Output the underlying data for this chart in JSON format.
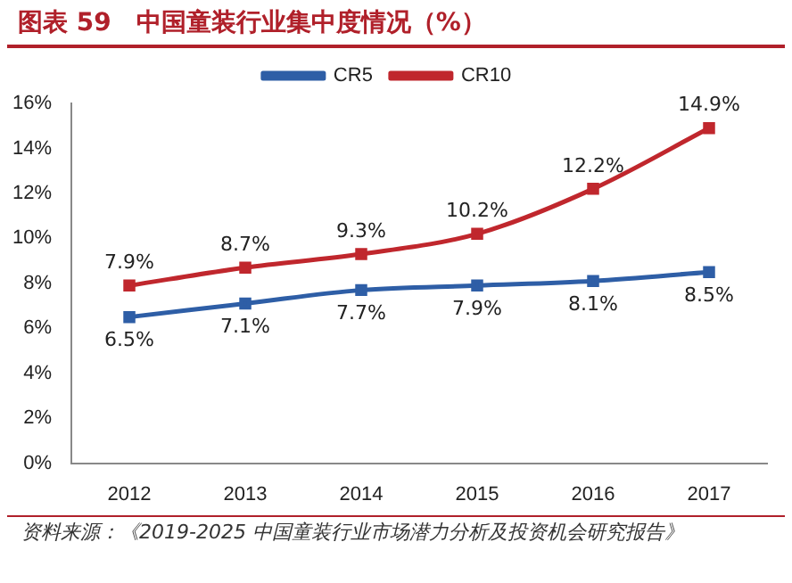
{
  "chart_data": {
    "type": "line",
    "title": "图表 59　中国童装行业集中度情况（%）",
    "categories": [
      "2012",
      "2013",
      "2014",
      "2015",
      "2016",
      "2017"
    ],
    "series": [
      {
        "name": "CR5",
        "color": "#2e5ea6",
        "values": [
          6.5,
          7.1,
          7.7,
          7.9,
          8.1,
          8.5
        ],
        "value_labels": [
          "6.5%",
          "7.1%",
          "7.7%",
          "7.9%",
          "8.1%",
          "8.5%"
        ]
      },
      {
        "name": "CR10",
        "color": "#c0272d",
        "values": [
          7.9,
          8.7,
          9.3,
          10.2,
          12.2,
          14.9
        ],
        "value_labels": [
          "7.9%",
          "8.7%",
          "9.3%",
          "10.2%",
          "12.2%",
          "14.9%"
        ]
      }
    ],
    "ylim": [
      0,
      16
    ],
    "yticks": [
      {
        "value": 0,
        "label": "0%"
      },
      {
        "value": 2,
        "label": "2%"
      },
      {
        "value": 4,
        "label": "4%"
      },
      {
        "value": 6,
        "label": "6%"
      },
      {
        "value": 8,
        "label": "8%"
      },
      {
        "value": 10,
        "label": "10%"
      },
      {
        "value": 12,
        "label": "12%"
      },
      {
        "value": 14,
        "label": "14%"
      },
      {
        "value": 16,
        "label": "16%"
      }
    ],
    "grid": false,
    "legend": "top",
    "marker": "square",
    "line_style": "solid",
    "annotations": [
      "资料来源：《2019-2025 中国童装行业市场潜力分析及投资机会研究报告》"
    ]
  }
}
